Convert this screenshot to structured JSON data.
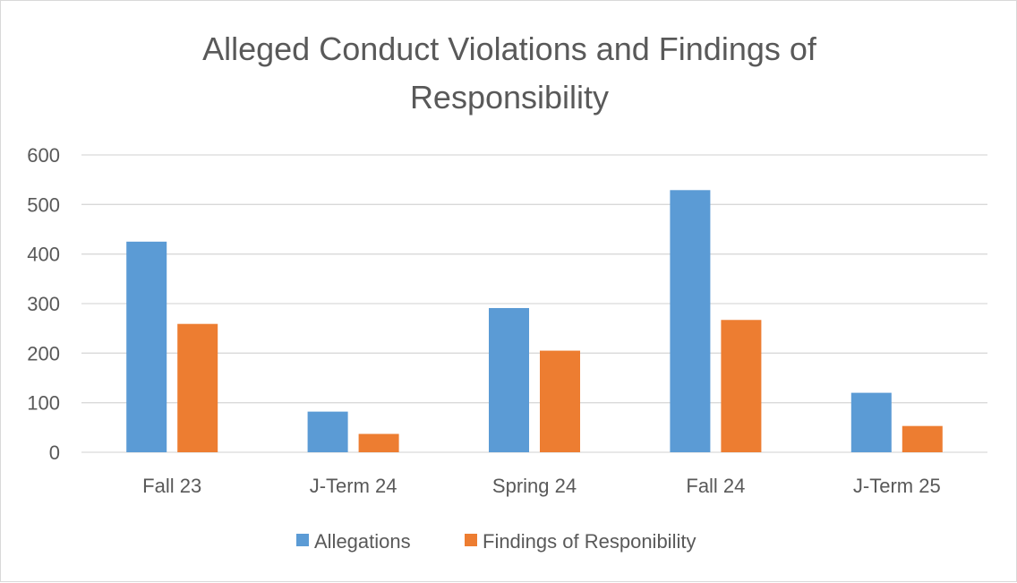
{
  "chart_data": {
    "type": "bar",
    "title_lines": [
      "Alleged Conduct Violations and Findings of",
      "Responsibility"
    ],
    "categories": [
      "Fall 23",
      "J-Term 24",
      "Spring 24",
      "Fall 24",
      "J-Term 25"
    ],
    "series": [
      {
        "name": "Allegations",
        "color": "#5b9bd5",
        "values": [
          425,
          82,
          291,
          529,
          120
        ]
      },
      {
        "name": "Findings of Responibility",
        "color": "#ed7d31",
        "values": [
          259,
          37,
          205,
          267,
          53
        ]
      }
    ],
    "ylim": [
      0,
      600
    ],
    "yticks": [
      0,
      100,
      200,
      300,
      400,
      500,
      600
    ],
    "grid": true,
    "legend_position": "bottom"
  }
}
